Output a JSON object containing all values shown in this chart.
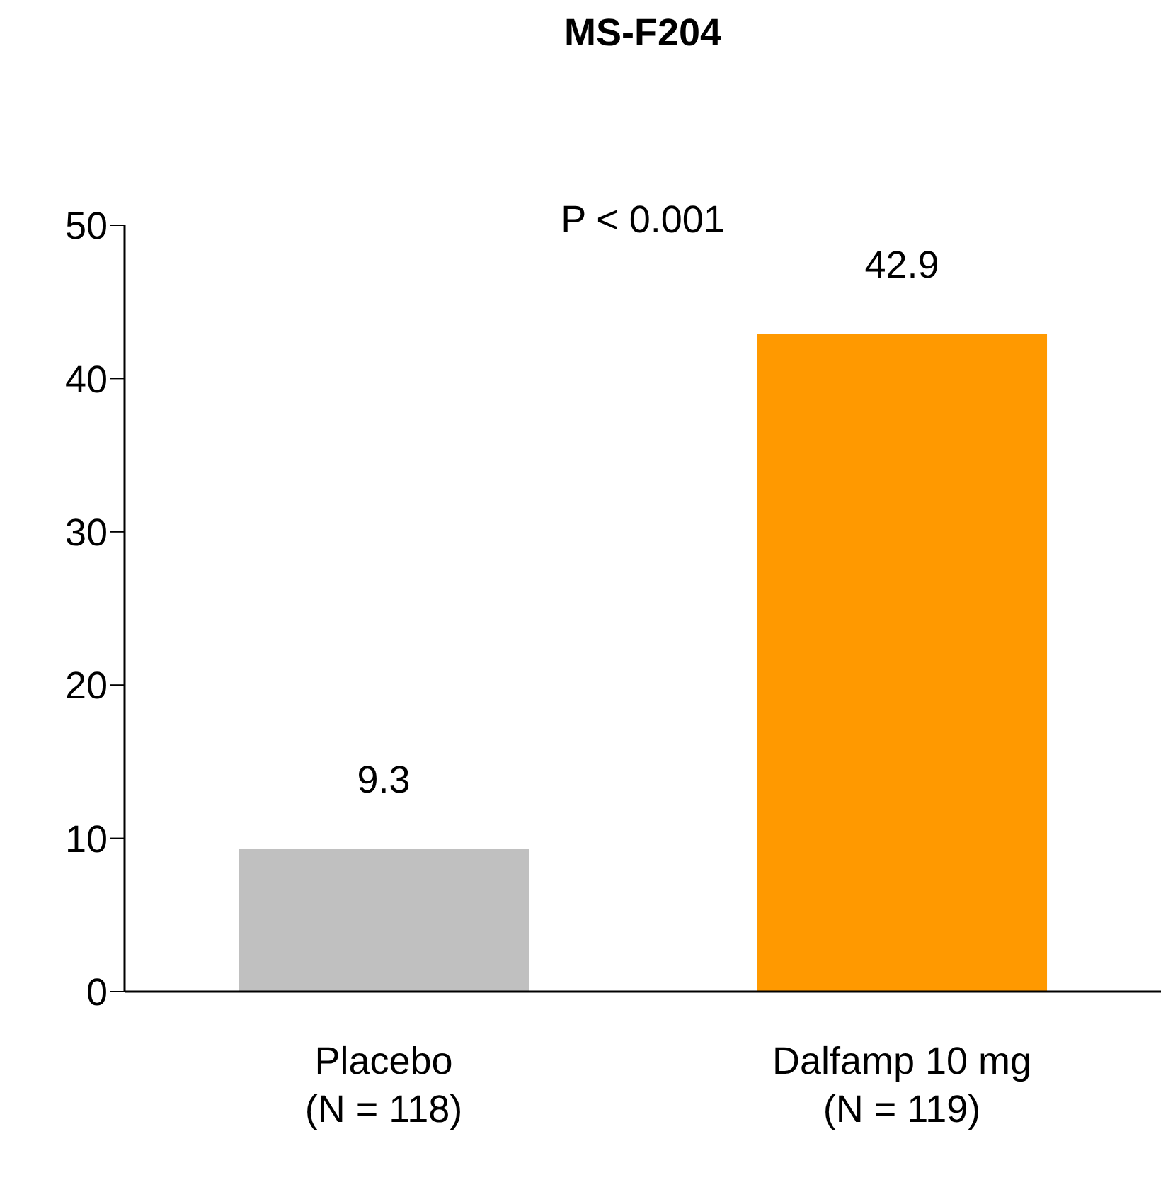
{
  "chart_data": {
    "type": "bar",
    "title": "MS-F204",
    "categories": [
      "Placebo\n(N = 118)",
      "Dalfamp 10 mg\n(N = 119)"
    ],
    "values": [
      9.3,
      42.9
    ],
    "colors": [
      "#c0c0c0",
      "#ff9900"
    ],
    "ylim": [
      0,
      50
    ],
    "yticks": [
      0,
      10,
      20,
      30,
      40,
      50
    ],
    "data_labels": true,
    "annotations": [
      "P < 0.001"
    ]
  }
}
